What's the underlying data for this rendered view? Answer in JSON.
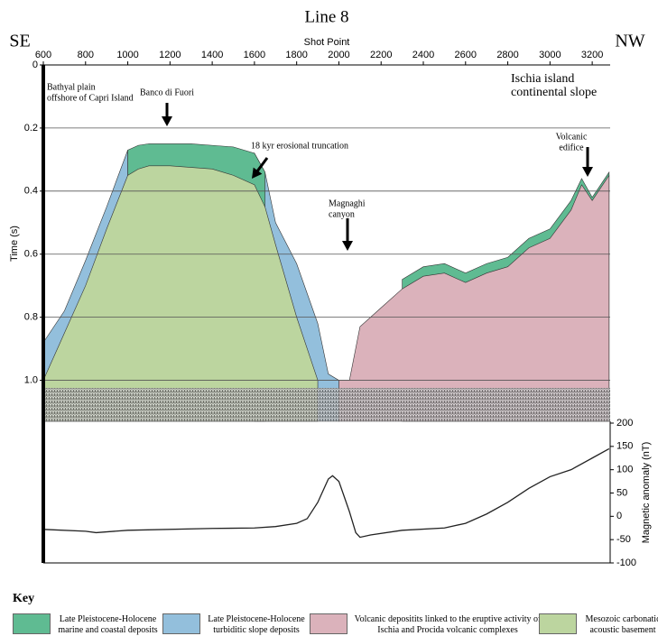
{
  "title": "Line 8",
  "left_label": "SE",
  "right_label": "NW",
  "chart_data": [
    {
      "type": "area",
      "x_label": "Shot Point",
      "y_label": "Time (s)",
      "y_inverted": true,
      "grid": true,
      "x": [
        600,
        700,
        800,
        900,
        1000,
        1050,
        1100,
        1200,
        1300,
        1400,
        1500,
        1600,
        1650,
        1700,
        1800,
        1900,
        1950,
        2000,
        2050,
        2100,
        2200,
        2300,
        2400,
        2500,
        2600,
        2700,
        2800,
        2900,
        3000,
        3100,
        3150,
        3200,
        3250,
        3280
      ],
      "xlim": [
        600,
        3285
      ],
      "xticks": [
        600,
        800,
        1000,
        1200,
        1400,
        1600,
        1800,
        2000,
        2200,
        2400,
        2600,
        2800,
        3000,
        3200
      ],
      "ylim": [
        0,
        1.13
      ],
      "yticks": [
        0,
        0.2,
        0.4,
        0.6,
        0.8,
        {
          "value": 1,
          "label": "1.0"
        }
      ],
      "key_title": "Key",
      "series": [
        {
          "name": "Late Pleistocene-Holocene turbiditic slope deposits",
          "color": "#93bfdc",
          "values": [
            0.88,
            0.78,
            0.62,
            0.45,
            0.27,
            null,
            null,
            null,
            null,
            null,
            null,
            0.28,
            0.34,
            0.5,
            0.63,
            0.82,
            0.98,
            1.0,
            null,
            null,
            null,
            null,
            null,
            null,
            null,
            null,
            null,
            null,
            null,
            null,
            null,
            null,
            null,
            null
          ]
        },
        {
          "name": "Late Pleistocene-Holocene marine and coastal deposits",
          "color": "#5fbb92",
          "values": [
            null,
            null,
            null,
            null,
            0.27,
            0.255,
            0.25,
            0.25,
            0.25,
            0.255,
            0.26,
            0.28,
            0.34,
            null,
            null,
            null,
            null,
            null,
            null,
            null,
            null,
            0.68,
            0.64,
            0.63,
            0.66,
            0.63,
            0.61,
            0.55,
            0.52,
            0.43,
            0.36,
            0.42,
            0.37,
            0.34
          ]
        },
        {
          "name": "Volcanic depositits linked to the eruptive activity of Ischia and Procida volcanic complexes",
          "color": "#dbb2bb",
          "values": [
            null,
            null,
            null,
            null,
            null,
            null,
            null,
            null,
            null,
            null,
            null,
            null,
            null,
            null,
            null,
            null,
            null,
            1.0,
            1.0,
            0.83,
            0.77,
            0.71,
            0.67,
            0.66,
            0.69,
            0.66,
            0.64,
            0.58,
            0.55,
            0.46,
            0.38,
            0.43,
            0.38,
            0.35
          ]
        },
        {
          "name": "Mesozoic carbonatic acoustic basement",
          "color": "#bcd59f",
          "values": [
            1.0,
            0.85,
            0.7,
            0.52,
            0.35,
            0.33,
            0.32,
            0.32,
            0.325,
            0.33,
            0.35,
            0.38,
            0.45,
            0.57,
            0.8,
            1.0,
            null,
            null,
            null,
            null,
            null,
            null,
            null,
            null,
            null,
            null,
            null,
            null,
            null,
            null,
            null,
            null,
            null,
            null
          ]
        }
      ],
      "annotations": [
        {
          "lines": [
            "Bathyal plain",
            "offshore of Capri Island"
          ]
        },
        {
          "lines": [
            "Ischia island",
            "continental slope"
          ]
        },
        {
          "lines": [
            "Banco di Fuori"
          ]
        },
        {
          "lines": [
            "18 kyr erosional truncation"
          ]
        },
        {
          "lines": [
            "Magnaghi",
            "canyon"
          ]
        },
        {
          "lines": [
            "Volcanic",
            "edifice"
          ]
        }
      ]
    },
    {
      "type": "line",
      "y_label": "Magnetic anomaly (nT)",
      "y_axis_side": "right",
      "x": [
        600,
        800,
        850,
        1000,
        1400,
        1600,
        1700,
        1800,
        1850,
        1900,
        1950,
        1970,
        2000,
        2050,
        2080,
        2100,
        2150,
        2300,
        2500,
        2600,
        2700,
        2800,
        2900,
        3000,
        3100,
        3200,
        3280
      ],
      "xlim": [
        600,
        3285
      ],
      "ylim": [
        -100,
        200
      ],
      "yticks": [
        -100,
        -50,
        0,
        50,
        100,
        150,
        200
      ],
      "series": [
        {
          "color": "#222222",
          "values": [
            -28,
            -32,
            -35,
            -30,
            -26,
            -25,
            -22,
            -15,
            -5,
            30,
            80,
            87,
            75,
            10,
            -35,
            -45,
            -40,
            -30,
            -25,
            -15,
            5,
            30,
            60,
            85,
            100,
            125,
            145
          ]
        }
      ]
    }
  ]
}
